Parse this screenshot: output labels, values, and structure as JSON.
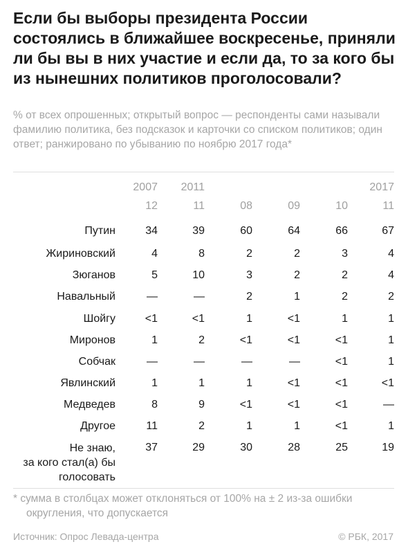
{
  "title": "Если бы выборы президента России состоялись в ближайшее воскресенье, приняли ли бы вы в них участие и если да, то за кого бы из нынешних политиков проголосовали?",
  "subtitle": "% от всех опрошенных; открытый вопрос — респонденты сами называли фамилию политика, без подсказок и карточки со списком политиков; один ответ; ранжировано по убыванию по ноябрю 2017 года*",
  "footnote_line1": "* сумма в столбцах может отклоняться от 100% на ± 2 из-за ошибки",
  "footnote_line2": "округления, что допускается",
  "source": "Источник: Опрос Левада-центра",
  "copyright": "© РБК, 2017",
  "colors": {
    "text": "#1a1a1a",
    "muted": "#a6a6a6",
    "divider": "#dedede"
  },
  "chart_data": {
    "type": "table",
    "year_headers": [
      "2007",
      "2011",
      "",
      "",
      "",
      "2017"
    ],
    "month_headers": [
      "12",
      "11",
      "08",
      "09",
      "10",
      "11"
    ],
    "rows": [
      {
        "label": "Путин",
        "values": [
          "34",
          "39",
          "60",
          "64",
          "66",
          "67"
        ]
      },
      {
        "label": "Жириновский",
        "values": [
          "4",
          "8",
          "2",
          "2",
          "3",
          "4"
        ]
      },
      {
        "label": "Зюганов",
        "values": [
          "5",
          "10",
          "3",
          "2",
          "2",
          "4"
        ]
      },
      {
        "label": "Навальный",
        "values": [
          "—",
          "—",
          "2",
          "1",
          "2",
          "2"
        ]
      },
      {
        "label": "Шойгу",
        "values": [
          "<1",
          "<1",
          "1",
          "<1",
          "1",
          "1"
        ]
      },
      {
        "label": "Миронов",
        "values": [
          "1",
          "2",
          "<1",
          "<1",
          "<1",
          "1"
        ]
      },
      {
        "label": "Собчак",
        "values": [
          "—",
          "—",
          "—",
          "—",
          "<1",
          "1"
        ]
      },
      {
        "label": "Явлинский",
        "values": [
          "1",
          "1",
          "1",
          "<1",
          "<1",
          "<1"
        ]
      },
      {
        "label": "Медведев",
        "values": [
          "8",
          "9",
          "<1",
          "<1",
          "<1",
          "—"
        ]
      },
      {
        "label": "Другое",
        "values": [
          "11",
          "2",
          "1",
          "1",
          "<1",
          "1"
        ]
      },
      {
        "label_lines": [
          "Не знаю,",
          "за кого стал(а) бы",
          "голосовать"
        ],
        "values": [
          "37",
          "29",
          "30",
          "28",
          "25",
          "19"
        ]
      }
    ]
  }
}
